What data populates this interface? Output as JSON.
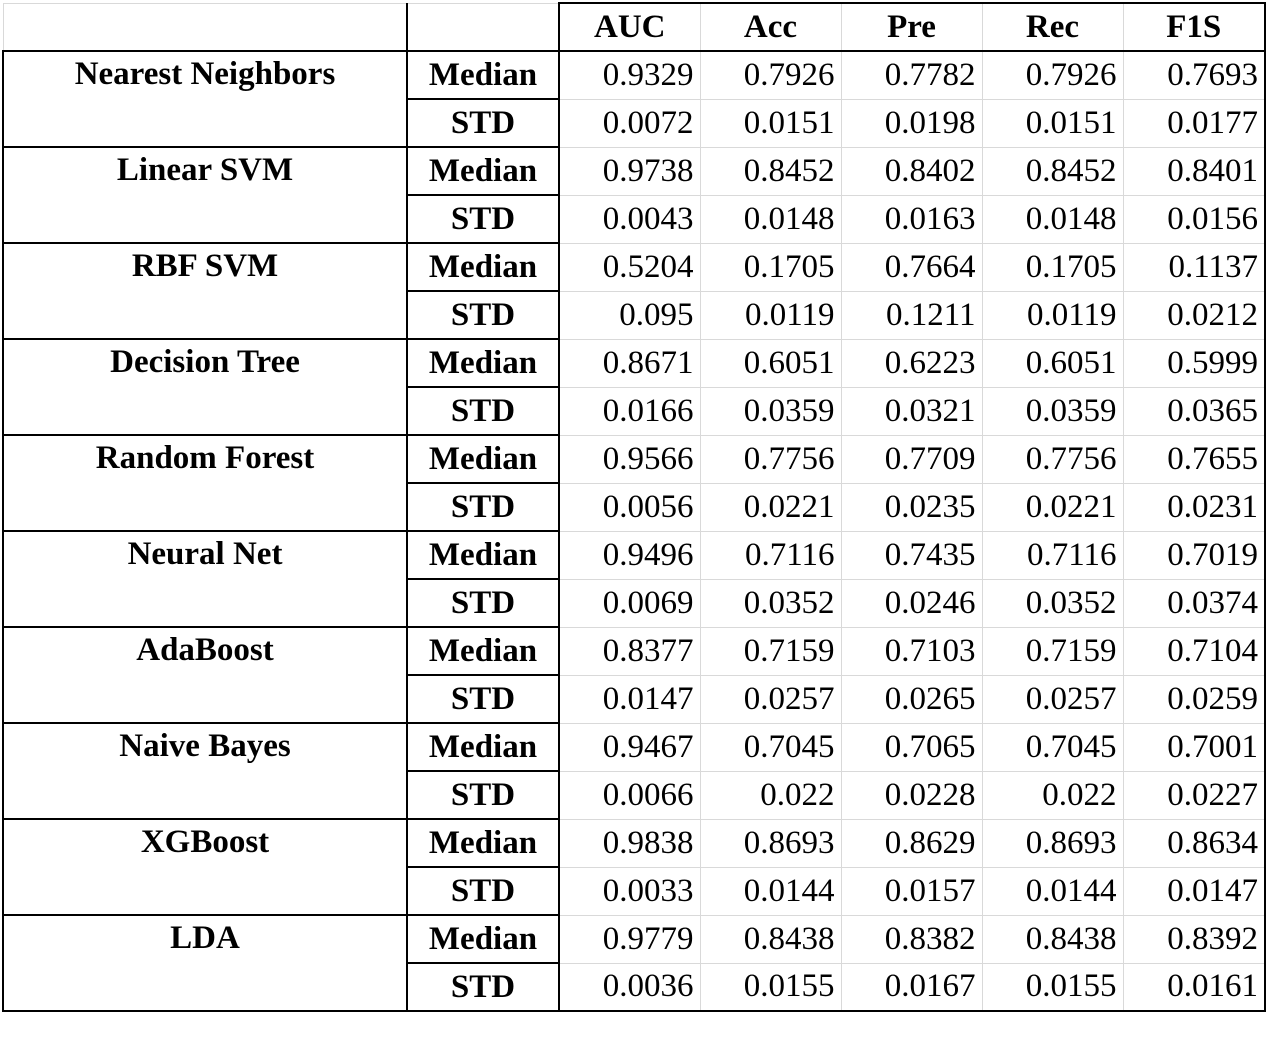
{
  "headers": [
    "",
    "",
    "AUC",
    "Acc",
    "Pre",
    "Rec",
    "F1S"
  ],
  "rows": [
    {
      "model": "Nearest Neighbors",
      "median": [
        "0.9329",
        "0.7926",
        "0.7782",
        "0.7926",
        "0.7693"
      ],
      "std": [
        "0.0072",
        "0.0151",
        "0.0198",
        "0.0151",
        "0.0177"
      ]
    },
    {
      "model": "Linear SVM",
      "median": [
        "0.9738",
        "0.8452",
        "0.8402",
        "0.8452",
        "0.8401"
      ],
      "std": [
        "0.0043",
        "0.0148",
        "0.0163",
        "0.0148",
        "0.0156"
      ]
    },
    {
      "model": "RBF SVM",
      "median": [
        "0.5204",
        "0.1705",
        "0.7664",
        "0.1705",
        "0.1137"
      ],
      "std": [
        "0.095",
        "0.0119",
        "0.1211",
        "0.0119",
        "0.0212"
      ]
    },
    {
      "model": "Decision Tree",
      "median": [
        "0.8671",
        "0.6051",
        "0.6223",
        "0.6051",
        "0.5999"
      ],
      "std": [
        "0.0166",
        "0.0359",
        "0.0321",
        "0.0359",
        "0.0365"
      ]
    },
    {
      "model": "Random Forest",
      "median": [
        "0.9566",
        "0.7756",
        "0.7709",
        "0.7756",
        "0.7655"
      ],
      "std": [
        "0.0056",
        "0.0221",
        "0.0235",
        "0.0221",
        "0.0231"
      ]
    },
    {
      "model": "Neural Net",
      "median": [
        "0.9496",
        "0.7116",
        "0.7435",
        "0.7116",
        "0.7019"
      ],
      "std": [
        "0.0069",
        "0.0352",
        "0.0246",
        "0.0352",
        "0.0374"
      ]
    },
    {
      "model": "AdaBoost",
      "median": [
        "0.8377",
        "0.7159",
        "0.7103",
        "0.7159",
        "0.7104"
      ],
      "std": [
        "0.0147",
        "0.0257",
        "0.0265",
        "0.0257",
        "0.0259"
      ]
    },
    {
      "model": "Naive Bayes",
      "median": [
        "0.9467",
        "0.7045",
        "0.7065",
        "0.7045",
        "0.7001"
      ],
      "std": [
        "0.0066",
        "0.022",
        "0.0228",
        "0.022",
        "0.0227"
      ]
    },
    {
      "model": "XGBoost",
      "median": [
        "0.9838",
        "0.8693",
        "0.8629",
        "0.8693",
        "0.8634"
      ],
      "std": [
        "0.0033",
        "0.0144",
        "0.0157",
        "0.0144",
        "0.0147"
      ]
    },
    {
      "model": "LDA",
      "median": [
        "0.9779",
        "0.8438",
        "0.8382",
        "0.8438",
        "0.8392"
      ],
      "std": [
        "0.0036",
        "0.0155",
        "0.0167",
        "0.0155",
        "0.0161"
      ]
    }
  ],
  "labels": {
    "median": "Median",
    "std": "STD"
  }
}
